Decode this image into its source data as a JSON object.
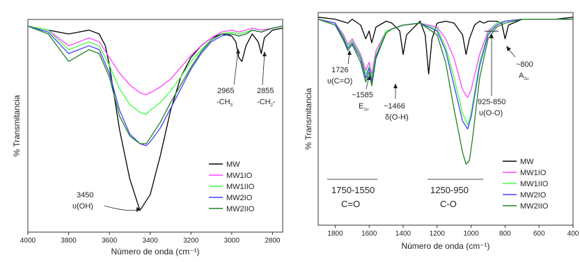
{
  "chart_data": [
    {
      "type": "line",
      "xlabel": "Número de onda (cm⁻¹)",
      "ylabel": "% Transmitancia",
      "xlim": [
        4000,
        2750
      ],
      "ylim": [
        0,
        100
      ],
      "x_ticks": [
        4000,
        3800,
        3600,
        3400,
        3200,
        3000,
        2800
      ],
      "x_tick_labels": [
        "4000",
        "3800",
        "3600",
        "3400",
        "3200",
        "3000",
        "2800"
      ],
      "legend_position": "bottom-right",
      "series": [
        {
          "name": "MW",
          "color": "#000000",
          "x": [
            4000,
            3900,
            3800,
            3750,
            3700,
            3650,
            3620,
            3600,
            3550,
            3500,
            3450,
            3400,
            3350,
            3300,
            3250,
            3200,
            3150,
            3100,
            3050,
            3000,
            2980,
            2965,
            2950,
            2930,
            2900,
            2870,
            2855,
            2840,
            2800,
            2750
          ],
          "y": [
            98,
            96,
            94,
            95,
            96,
            94,
            88,
            78,
            45,
            20,
            4,
            12,
            32,
            55,
            72,
            82,
            88,
            92,
            94,
            93,
            90,
            82,
            80,
            88,
            94,
            90,
            84,
            92,
            96,
            97
          ]
        },
        {
          "name": "MW1IO",
          "color": "#ff40ff",
          "x": [
            4000,
            3900,
            3800,
            3750,
            3700,
            3650,
            3600,
            3550,
            3500,
            3450,
            3420,
            3400,
            3350,
            3300,
            3250,
            3200,
            3150,
            3100,
            3050,
            3000,
            2965,
            2930,
            2900,
            2855,
            2800,
            2750
          ],
          "y": [
            98,
            96,
            88,
            90,
            92,
            90,
            82,
            74,
            68,
            64,
            63,
            64,
            67,
            71,
            77,
            83,
            88,
            92,
            95,
            96,
            95,
            96,
            97,
            96,
            97,
            98
          ]
        },
        {
          "name": "MW1IIO",
          "color": "#40ff40",
          "x": [
            4000,
            3900,
            3800,
            3750,
            3700,
            3650,
            3600,
            3550,
            3500,
            3450,
            3420,
            3400,
            3350,
            3300,
            3250,
            3200,
            3150,
            3100,
            3050,
            3000,
            2965,
            2930,
            2900,
            2855,
            2800,
            2750
          ],
          "y": [
            98,
            96,
            86,
            88,
            90,
            88,
            78,
            66,
            58,
            54,
            53,
            55,
            59,
            65,
            72,
            80,
            86,
            91,
            94,
            95,
            94,
            95,
            96,
            95,
            97,
            98
          ]
        },
        {
          "name": "MW2IO",
          "color": "#4040ff",
          "x": [
            4000,
            3900,
            3800,
            3750,
            3700,
            3650,
            3600,
            3550,
            3500,
            3450,
            3420,
            3400,
            3350,
            3300,
            3250,
            3200,
            3150,
            3100,
            3050,
            3000,
            2965,
            2930,
            2900,
            2855,
            2800,
            2750
          ],
          "y": [
            98,
            95,
            84,
            86,
            88,
            86,
            74,
            55,
            43,
            38,
            37,
            39,
            46,
            56,
            66,
            76,
            84,
            90,
            93,
            94,
            93,
            94,
            96,
            95,
            97,
            98
          ]
        },
        {
          "name": "MW2IIO",
          "color": "#208020",
          "x": [
            4000,
            3900,
            3800,
            3750,
            3700,
            3650,
            3600,
            3550,
            3500,
            3450,
            3420,
            3400,
            3350,
            3300,
            3250,
            3200,
            3150,
            3100,
            3050,
            3000,
            2965,
            2930,
            2900,
            2855,
            2800,
            2750
          ],
          "y": [
            98,
            94,
            80,
            83,
            86,
            84,
            72,
            52,
            42,
            38,
            38,
            41,
            49,
            59,
            68,
            77,
            85,
            91,
            94,
            94,
            93,
            94,
            96,
            95,
            97,
            98
          ]
        }
      ],
      "annotations": [
        {
          "text": "2965",
          "text2": "-CH",
          "sub": "3"
        },
        {
          "text": "2855",
          "text2": "-CH",
          "sub": "2",
          "text3": "-"
        },
        {
          "text": "3450",
          "text2": "υ(OH)"
        }
      ]
    },
    {
      "type": "line",
      "xlabel": "Número de onda (cm⁻¹)",
      "ylabel": "% Transmitancia",
      "xlim": [
        1900,
        400
      ],
      "ylim": [
        0,
        100
      ],
      "x_ticks": [
        1800,
        1600,
        1400,
        1200,
        1000,
        800,
        600,
        400
      ],
      "x_tick_labels": [
        "1800",
        "1600",
        "1400",
        "1200",
        "1000",
        "800",
        "600",
        "400"
      ],
      "legend_position": "bottom-right",
      "series": [
        {
          "name": "MW",
          "color": "#000000",
          "x": [
            1900,
            1800,
            1726,
            1700,
            1650,
            1620,
            1600,
            1585,
            1560,
            1500,
            1466,
            1420,
            1400,
            1380,
            1300,
            1270,
            1250,
            1230,
            1200,
            1150,
            1100,
            1050,
            1030,
            1010,
            980,
            950,
            925,
            900,
            850,
            820,
            800,
            780,
            700,
            600,
            500,
            400
          ],
          "y": [
            99,
            98,
            96,
            98,
            95,
            88,
            92,
            86,
            94,
            97,
            96,
            92,
            80,
            90,
            97,
            90,
            70,
            88,
            96,
            97,
            96,
            90,
            80,
            88,
            95,
            97,
            96,
            97,
            97,
            96,
            88,
            95,
            98,
            98,
            98,
            99
          ]
        },
        {
          "name": "MW1IO",
          "color": "#ff40ff",
          "x": [
            1900,
            1800,
            1750,
            1726,
            1700,
            1650,
            1620,
            1600,
            1585,
            1560,
            1500,
            1466,
            1400,
            1300,
            1200,
            1150,
            1100,
            1050,
            1020,
            1000,
            950,
            900,
            850,
            800,
            700,
            600,
            500,
            400
          ],
          "y": [
            98,
            96,
            90,
            85,
            88,
            80,
            72,
            76,
            70,
            82,
            92,
            93,
            95,
            96,
            94,
            88,
            78,
            62,
            58,
            62,
            80,
            92,
            96,
            97,
            98,
            98,
            98,
            98
          ]
        },
        {
          "name": "MW1IIO",
          "color": "#40ff40",
          "x": [
            1900,
            1800,
            1750,
            1726,
            1700,
            1650,
            1620,
            1600,
            1585,
            1560,
            1500,
            1466,
            1400,
            1300,
            1200,
            1150,
            1100,
            1050,
            1020,
            1000,
            950,
            900,
            850,
            800,
            700,
            600,
            500,
            400
          ],
          "y": [
            98,
            96,
            89,
            84,
            87,
            79,
            70,
            74,
            68,
            80,
            92,
            93,
            95,
            96,
            93,
            84,
            68,
            50,
            44,
            50,
            76,
            91,
            96,
            97,
            98,
            98,
            98,
            98
          ]
        },
        {
          "name": "MW2IO",
          "color": "#4040ff",
          "x": [
            1900,
            1800,
            1750,
            1726,
            1700,
            1650,
            1620,
            1600,
            1585,
            1560,
            1500,
            1466,
            1400,
            1300,
            1200,
            1150,
            1100,
            1050,
            1020,
            1000,
            950,
            900,
            850,
            800,
            700,
            600,
            500,
            400
          ],
          "y": [
            98,
            96,
            88,
            83,
            86,
            78,
            68,
            73,
            66,
            79,
            91,
            93,
            95,
            96,
            92,
            82,
            64,
            46,
            42,
            48,
            74,
            90,
            95,
            97,
            98,
            98,
            98,
            98
          ]
        },
        {
          "name": "MW2IIO",
          "color": "#208020",
          "x": [
            1900,
            1800,
            1750,
            1726,
            1700,
            1650,
            1620,
            1600,
            1585,
            1560,
            1500,
            1466,
            1400,
            1300,
            1200,
            1150,
            1100,
            1050,
            1030,
            1010,
            990,
            950,
            900,
            850,
            800,
            700,
            600,
            500,
            400
          ],
          "y": [
            98,
            95,
            87,
            82,
            85,
            76,
            66,
            71,
            64,
            78,
            91,
            93,
            95,
            96,
            90,
            76,
            52,
            30,
            24,
            26,
            38,
            68,
            88,
            94,
            96,
            98,
            98,
            98,
            98
          ]
        }
      ],
      "annotations": [
        {
          "text": "1726",
          "text2": "υ(C=O)"
        },
        {
          "text": "~1585",
          "text2": "E",
          "sub": "1u"
        },
        {
          "text": "~1466",
          "text2": "δ(O-H)"
        },
        {
          "text": "925-850",
          "text2": "υ(O-O)"
        },
        {
          "text": "~800",
          "text2": "A",
          "sub": "2u"
        }
      ],
      "band_labels": [
        {
          "range": "1750-1550",
          "group": "C=O"
        },
        {
          "range": "1250-950",
          "group": "C-O"
        }
      ]
    }
  ]
}
